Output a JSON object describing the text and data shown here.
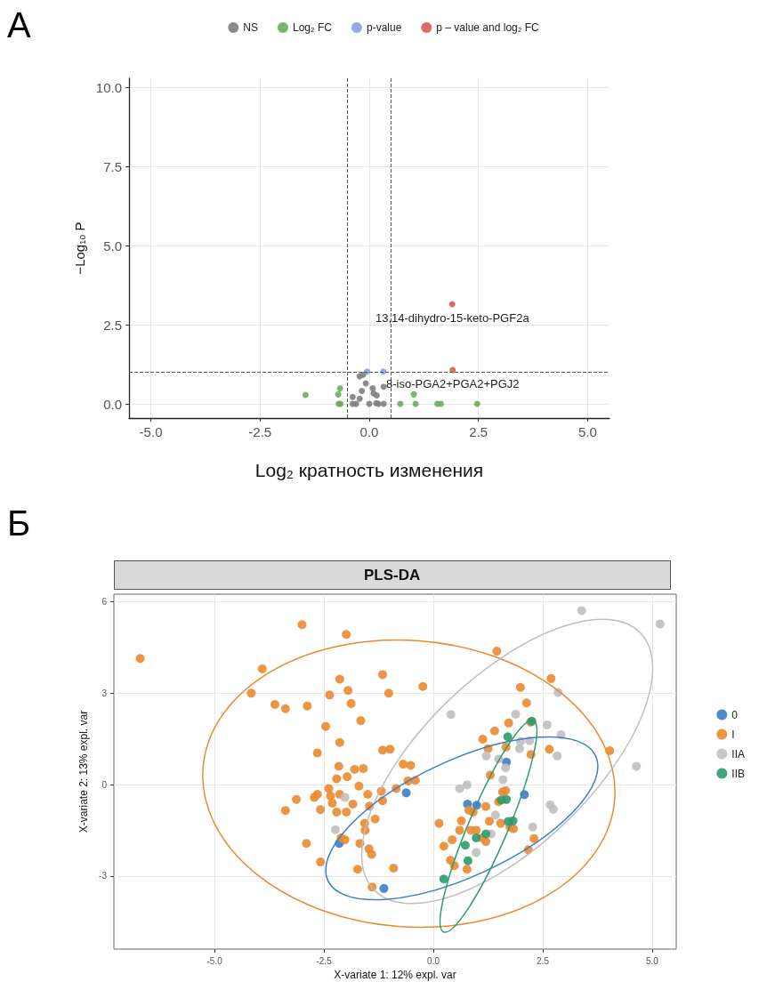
{
  "chart_data": [
    {
      "type": "scatter",
      "xlabel": "Log₂ кратность изменения",
      "ylabel": "−Log₁₀ P",
      "annotations": [
        "А",
        {
          "text": "13,14-dihydro-15-keto-PGF2a",
          "x": 1.9,
          "y": 3.15
        },
        {
          "text": "8-iso-PGA2+PGA2+PGJ2",
          "x": 1.91,
          "y": 1.07
        }
      ],
      "series": [
        {
          "name": "NS",
          "color": "#7f7f7f",
          "x": [
            -0.22,
            -0.14,
            -0.17,
            -0.38,
            -0.22,
            -0.3,
            0,
            0.08,
            0.1,
            0.17,
            0.21,
            0.33,
            0.33,
            -0.08,
            0.16,
            -0.38
          ],
          "values": [
            0.87,
            0.92,
            0.41,
            0.22,
            0.16,
            0,
            0,
            0.49,
            0.33,
            0.27,
            0,
            0,
            0.54,
            0.65,
            0.02,
            0
          ]
        },
        {
          "name": "Log₂ FC",
          "color": "#6aad5e",
          "x": [
            -1.46,
            -0.67,
            -0.71,
            -0.7,
            -0.66,
            0.71,
            1.02,
            1.06,
            1.56,
            1.64,
            2.47
          ],
          "values": [
            0.28,
            0.49,
            0.3,
            0,
            0,
            0,
            0.3,
            0,
            0,
            0,
            0
          ]
        },
        {
          "name": "p-value",
          "color": "#8b9fe3",
          "x": [
            -0.05,
            0.32
          ],
          "values": [
            1.02,
            1.02
          ]
        },
        {
          "name": "p – value and log₂ FC",
          "color": "#dc5a5a",
          "x": [
            1.9,
            1.91
          ],
          "values": [
            3.15,
            1.07
          ]
        }
      ],
      "xlim": [
        -5.5,
        5.5
      ],
      "ylim": [
        -0.45,
        10.3
      ],
      "xticks": [
        {
          "value": -5,
          "label": "-5.0"
        },
        {
          "value": -2.5,
          "label": "-2.5"
        },
        {
          "value": 0,
          "label": "0.0"
        },
        {
          "value": 2.5,
          "label": "2.5"
        },
        {
          "value": 5,
          "label": "5.0"
        }
      ],
      "yticks": [
        {
          "value": 0,
          "label": "0.0"
        },
        {
          "value": 2.5,
          "label": "2.5"
        },
        {
          "value": 5,
          "label": "5.0"
        },
        {
          "value": 7.5,
          "label": "7.5"
        },
        {
          "value": 10,
          "label": "10.0"
        }
      ],
      "ref_lines": [
        {
          "axis": "x",
          "value": -0.5,
          "color": "#555555",
          "line_style": "dashed"
        },
        {
          "axis": "x",
          "value": 0.5,
          "color": "#555555",
          "line_style": "dashed"
        },
        {
          "axis": "y",
          "value": 1,
          "color": "#555555",
          "line_style": "dashed"
        }
      ],
      "grid": true,
      "legend": "top",
      "marker": "circle"
    },
    {
      "type": "scatter",
      "title": "PLS-DA",
      "xlabel": "X-variate 1: 12% expl. var",
      "ylabel": "X-variate 2: 13% expl. var",
      "annotations": [
        "Б"
      ],
      "series": [
        {
          "name": "0",
          "color": "#3b7ec6",
          "x": [
            -0.62,
            1.67,
            2.08,
            0.78,
            0.99,
            -2.15,
            -1.13
          ],
          "values": [
            -0.27,
            0.74,
            -0.33,
            -0.64,
            -0.68,
            -1.93,
            -3.41
          ]
        },
        {
          "name": "I",
          "color": "#ea8a30",
          "x": [
            -6.7,
            -3.0,
            -1.99,
            -3.91,
            -4.16,
            -3.62,
            -3.38,
            -2.88,
            -2.37,
            -2.14,
            -1.95,
            -1.88,
            -1.66,
            -1.16,
            -1.02,
            -0.24,
            -2.46,
            -2.14,
            -2.65,
            -1.16,
            -0.99,
            -2.16,
            -1.8,
            -1.6,
            -1.97,
            -2.21,
            -0.69,
            -0.52,
            -0.58,
            -0.41,
            -1.7,
            -0.85,
            -2.39,
            -2.65,
            -2.72,
            -3.13,
            -3.38,
            -2.58,
            -2.35,
            -2.14,
            -2.31,
            -2.21,
            -1.99,
            -1.84,
            -1.5,
            -1.46,
            -1.19,
            -1.16,
            -1.57,
            -1.33,
            0.13,
            0.64,
            -2.9,
            -2.58,
            -2.11,
            -2.02,
            -1.56,
            -1.68,
            -1.47,
            -1.41,
            -1.73,
            -1.4,
            -0.91,
            0.24,
            0.43,
            0.6,
            0.39,
            0.48,
            0.77,
            0.81,
            0.86,
            0.98,
            1.11,
            1.2,
            1.28,
            1.2,
            1.58,
            1.54,
            1.75,
            1.83,
            2.17,
            2.3,
            1.45,
            2.69,
            1.99,
            2.13,
            1.72,
            1.4,
            1.13,
            1.25,
            1.66,
            2.23,
            2.22,
            2.65,
            4.03,
            1.3,
            1.65,
            1.49,
            0.91
          ],
          "values": [
            4.14,
            5.25,
            4.93,
            3.8,
            3.0,
            2.63,
            2.49,
            2.58,
            2.94,
            3.46,
            3.09,
            2.66,
            2.1,
            3.61,
            3.0,
            3.22,
            1.91,
            1.38,
            1.04,
            1.13,
            1.16,
            0.6,
            0.5,
            0.53,
            0.26,
            0.19,
            0.67,
            0.63,
            0.12,
            0.14,
            -0.05,
            -0.13,
            -0.13,
            -0.32,
            -0.42,
            -0.49,
            -0.85,
            -0.82,
            -0.37,
            -0.32,
            -0.61,
            -0.9,
            -0.9,
            -0.64,
            -0.32,
            -0.71,
            -0.22,
            -0.53,
            -1.27,
            -1.13,
            -1.27,
            -1.19,
            -1.93,
            -2.54,
            -1.75,
            -1.81,
            -1.5,
            -1.93,
            -2.11,
            -2.29,
            -2.78,
            -3.36,
            -2.74,
            -2.02,
            -1.81,
            -1.5,
            -2.48,
            -2.66,
            -2.78,
            -0.84,
            -1.5,
            -1.5,
            -1.75,
            -0.72,
            -1.2,
            -1.87,
            -0.24,
            -1.27,
            -1.39,
            -1.45,
            -2.14,
            -1.77,
            4.38,
            3.48,
            3.19,
            2.68,
            2.02,
            1.76,
            1.49,
            1.18,
            1.23,
            0.99,
            2.05,
            1.16,
            1.11,
            0.31,
            -0.2,
            -0.56,
            -0.9
          ]
        },
        {
          "name": "IIA",
          "color": "#bfbfbf",
          "x": [
            3.39,
            5.18,
            2.85,
            0.4,
            1.88,
            2.6,
            2.92,
            4.64,
            1.99,
            2.2,
            1.97,
            2.83,
            1.21,
            1.49,
            1.65,
            1.59,
            0.6,
            0.77,
            2.67,
            2.74,
            1.42,
            2.27,
            -2.24,
            -2.02,
            0.98,
            1.32
          ],
          "values": [
            5.71,
            5.27,
            3.02,
            2.3,
            2.31,
            1.96,
            1.64,
            0.6,
            1.42,
            1.44,
            1.18,
            0.94,
            0.94,
            0.84,
            0.55,
            0.16,
            -0.13,
            -0.01,
            -0.66,
            -0.81,
            -1.0,
            -1.39,
            -1.48,
            -0.42,
            -2.23,
            -1.62
          ]
        },
        {
          "name": "IIB",
          "color": "#2e9b6e",
          "x": [
            2.25,
            1.7,
            1.67,
            1.82,
            1.55,
            1.71,
            0.98,
            1.2,
            0.73,
            0.79,
            0.24
          ],
          "values": [
            2.08,
            1.57,
            -0.49,
            -1.19,
            -0.51,
            -1.21,
            -1.75,
            -1.62,
            -1.99,
            -2.5,
            -3.1
          ]
        }
      ],
      "xlim": [
        -7.3,
        5.55
      ],
      "ylim": [
        -5.4,
        6.25
      ],
      "xticks": [
        {
          "value": -5,
          "label": "-5.0"
        },
        {
          "value": -2.5,
          "label": "-2.5"
        },
        {
          "value": 0,
          "label": "0.0"
        },
        {
          "value": 2.5,
          "label": "2.5"
        },
        {
          "value": 5,
          "label": "5.0"
        }
      ],
      "yticks": [
        -3,
        0,
        3,
        6
      ],
      "grid": true,
      "legend": "right",
      "marker": "circle"
    }
  ]
}
